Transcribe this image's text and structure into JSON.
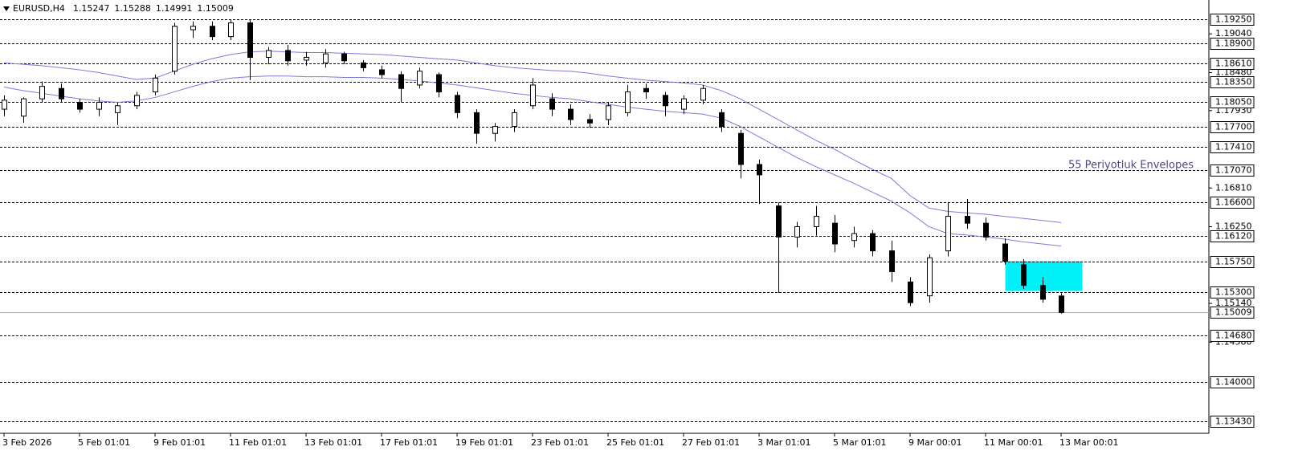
{
  "chart_data": {
    "type": "candlestick",
    "symbol": "EURUSD,H4",
    "ohlc": [
      1.15247,
      1.15288,
      1.14991,
      1.15009
    ],
    "annotation": "55 Periyotluk Envelopes",
    "x_labels": [
      "3 Feb 2026",
      "5 Feb 01:01",
      "9 Feb 01:01",
      "11 Feb 01:01",
      "13 Feb 01:01",
      "17 Feb 01:01",
      "19 Feb 01:01",
      "23 Feb 01:01",
      "25 Feb 01:01",
      "27 Feb 01:01",
      "3 Mar 01:01",
      "5 Mar 01:01",
      "9 Mar 00:01",
      "11 Mar 00:01",
      "13 Mar 00:01"
    ],
    "ylim": [
      1.1326,
      1.1953
    ],
    "yticks": [
      {
        "value": 1.1904,
        "label": "1.19040"
      },
      {
        "value": 1.1848,
        "label": "1.18480"
      },
      {
        "value": 1.1793,
        "label": "1.17930"
      },
      {
        "value": 1.1681,
        "label": "1.16810"
      },
      {
        "value": 1.1625,
        "label": "1.16250"
      },
      {
        "value": 1.1514,
        "label": "1.15140"
      },
      {
        "value": 1.1458,
        "label": "1.14580"
      }
    ],
    "levels": [
      {
        "value": 1.1925,
        "label": "1.19250"
      },
      {
        "value": 1.189,
        "label": "1.18900"
      },
      {
        "value": 1.1861,
        "label": "1.18610"
      },
      {
        "value": 1.1835,
        "label": "1.18350"
      },
      {
        "value": 1.1805,
        "label": "1.18050"
      },
      {
        "value": 1.177,
        "label": "1.17700"
      },
      {
        "value": 1.1741,
        "label": "1.17410"
      },
      {
        "value": 1.1707,
        "label": "1.17070"
      },
      {
        "value": 1.166,
        "label": "1.16600"
      },
      {
        "value": 1.1612,
        "label": "1.16120"
      },
      {
        "value": 1.1575,
        "label": "1.15750"
      },
      {
        "value": 1.153,
        "label": "1.15300"
      },
      {
        "value": 1.1468,
        "label": "1.14680"
      },
      {
        "value": 1.14,
        "label": "1.14000"
      },
      {
        "value": 1.1343,
        "label": "1.13430"
      }
    ],
    "current_price": 1.15009,
    "highlight": {
      "top": 1.1575,
      "bottom": 1.1532,
      "color": "#00f0f8"
    },
    "candles": [
      [
        1.1795,
        1.1815,
        1.1785,
        1.1808
      ],
      [
        1.1785,
        1.1812,
        1.1775,
        1.181
      ],
      [
        1.181,
        1.1835,
        1.1805,
        1.1828
      ],
      [
        1.1825,
        1.1832,
        1.1805,
        1.181
      ],
      [
        1.1805,
        1.181,
        1.179,
        1.1795
      ],
      [
        1.1795,
        1.1812,
        1.1785,
        1.1805
      ],
      [
        1.179,
        1.1805,
        1.1772,
        1.18
      ],
      [
        1.18,
        1.182,
        1.1795,
        1.1815
      ],
      [
        1.182,
        1.1845,
        1.1815,
        1.184
      ],
      [
        1.185,
        1.192,
        1.1845,
        1.1915
      ],
      [
        1.191,
        1.1922,
        1.1898,
        1.1915
      ],
      [
        1.1915,
        1.1922,
        1.1895,
        1.19
      ],
      [
        1.19,
        1.1925,
        1.1895,
        1.192
      ],
      [
        1.192,
        1.1924,
        1.1837,
        1.187
      ],
      [
        1.187,
        1.1885,
        1.186,
        1.188
      ],
      [
        1.188,
        1.1888,
        1.1858,
        1.1865
      ],
      [
        1.1866,
        1.1878,
        1.1858,
        1.187
      ],
      [
        1.1862,
        1.1882,
        1.1855,
        1.1875
      ],
      [
        1.1875,
        1.1878,
        1.186,
        1.1865
      ],
      [
        1.1862,
        1.1866,
        1.185,
        1.1855
      ],
      [
        1.1852,
        1.1858,
        1.184,
        1.1845
      ],
      [
        1.1845,
        1.185,
        1.1805,
        1.1825
      ],
      [
        1.183,
        1.1855,
        1.1825,
        1.185
      ],
      [
        1.1845,
        1.1848,
        1.1812,
        1.182
      ],
      [
        1.1815,
        1.182,
        1.1782,
        1.179
      ],
      [
        1.179,
        1.1795,
        1.1745,
        1.176
      ],
      [
        1.176,
        1.1775,
        1.1748,
        1.177
      ],
      [
        1.177,
        1.1795,
        1.1762,
        1.179
      ],
      [
        1.18,
        1.184,
        1.1795,
        1.183
      ],
      [
        1.181,
        1.1818,
        1.1785,
        1.1795
      ],
      [
        1.1795,
        1.1802,
        1.1772,
        1.178
      ],
      [
        1.178,
        1.1788,
        1.1768,
        1.1775
      ],
      [
        1.178,
        1.1805,
        1.1772,
        1.18
      ],
      [
        1.179,
        1.183,
        1.1785,
        1.182
      ],
      [
        1.1825,
        1.1832,
        1.181,
        1.182
      ],
      [
        1.1815,
        1.182,
        1.1785,
        1.18
      ],
      [
        1.1795,
        1.1815,
        1.1788,
        1.181
      ],
      [
        1.1808,
        1.183,
        1.1802,
        1.1825
      ],
      [
        1.179,
        1.1795,
        1.1762,
        1.177
      ],
      [
        1.176,
        1.1765,
        1.1695,
        1.1715
      ],
      [
        1.1715,
        1.1722,
        1.1658,
        1.17
      ],
      [
        1.1655,
        1.166,
        1.1529,
        1.161
      ],
      [
        1.161,
        1.1632,
        1.1595,
        1.1625
      ],
      [
        1.1625,
        1.1655,
        1.1612,
        1.164
      ],
      [
        1.163,
        1.1642,
        1.1588,
        1.16
      ],
      [
        1.1605,
        1.1625,
        1.1595,
        1.1615
      ],
      [
        1.1615,
        1.162,
        1.1582,
        1.159
      ],
      [
        1.159,
        1.1605,
        1.1545,
        1.156
      ],
      [
        1.1545,
        1.1552,
        1.151,
        1.1515
      ],
      [
        1.1525,
        1.1585,
        1.1515,
        1.158
      ],
      [
        1.159,
        1.166,
        1.1582,
        1.164
      ],
      [
        1.164,
        1.1665,
        1.1622,
        1.163
      ],
      [
        1.163,
        1.1638,
        1.1605,
        1.161
      ],
      [
        1.16,
        1.1608,
        1.157,
        1.1575
      ],
      [
        1.157,
        1.1578,
        1.1535,
        1.154
      ],
      [
        1.154,
        1.1552,
        1.1515,
        1.152
      ],
      [
        1.15247,
        1.15288,
        1.14991,
        1.15009
      ]
    ],
    "series": [
      {
        "color": "#7b7bd8",
        "values": [
          1.1862,
          1.186,
          1.1858,
          1.1855,
          1.1852,
          1.1848,
          1.1843,
          1.1838,
          1.184,
          1.185,
          1.186,
          1.1868,
          1.1874,
          1.1878,
          1.1879,
          1.1878,
          1.1877,
          1.1877,
          1.1876,
          1.1875,
          1.1874,
          1.1872,
          1.187,
          1.1868,
          1.1866,
          1.1862,
          1.1858,
          1.1855,
          1.1853,
          1.1851,
          1.185,
          1.1847,
          1.1843,
          1.184,
          1.1837,
          1.1835,
          1.1833,
          1.183,
          1.1822,
          1.181,
          1.1795,
          1.178,
          1.1765,
          1.175,
          1.1737,
          1.1722,
          1.1708,
          1.1695,
          1.167,
          1.1652,
          1.1647,
          1.1645,
          1.1643,
          1.164,
          1.1637,
          1.1634,
          1.1631
        ]
      },
      {
        "color": "#7b7bd8",
        "values": [
          1.1827,
          1.1822,
          1.1818,
          1.1814,
          1.181,
          1.1807,
          1.1805,
          1.1807,
          1.1812,
          1.182,
          1.1828,
          1.1835,
          1.184,
          1.1842,
          1.1843,
          1.1843,
          1.1842,
          1.1842,
          1.1841,
          1.1841,
          1.184,
          1.1838,
          1.1836,
          1.1833,
          1.183,
          1.1826,
          1.1822,
          1.1818,
          1.1815,
          1.1812,
          1.181,
          1.1806,
          1.1802,
          1.1798,
          1.1795,
          1.1792,
          1.179,
          1.1788,
          1.1782,
          1.177,
          1.1755,
          1.174,
          1.1725,
          1.1712,
          1.17,
          1.1688,
          1.1675,
          1.1662,
          1.1645,
          1.1625,
          1.1615,
          1.1613,
          1.161,
          1.1607,
          1.1603,
          1.16,
          1.1597
        ]
      }
    ]
  }
}
